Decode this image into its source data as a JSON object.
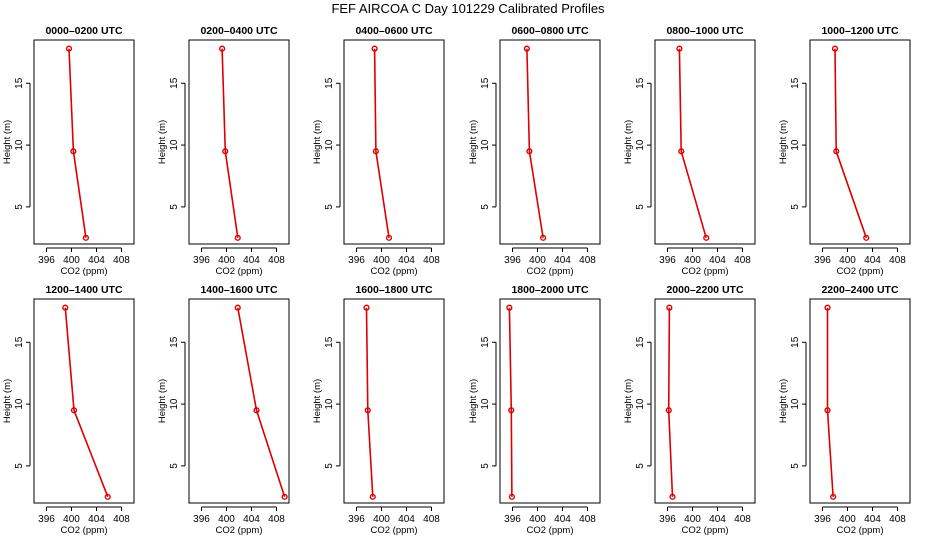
{
  "chart_data": {
    "type": "line",
    "title": "FEF AIRCOA C  Day 101229  Calibrated Profiles",
    "series_color": "#dd0000",
    "shared_axes": {
      "xlabel": "CO2 (ppm)",
      "ylabel": "Height (m)",
      "xlim": [
        394,
        410
      ],
      "ylim": [
        2,
        18.5
      ],
      "xticks": [
        396,
        400,
        404,
        408
      ],
      "yticks": [
        5,
        10,
        15
      ],
      "grid": false,
      "legend": "none"
    },
    "panels": [
      {
        "title": "0000–0200 UTC",
        "points": [
          {
            "x": 399.6,
            "y": 17.8
          },
          {
            "x": 400.3,
            "y": 9.5
          },
          {
            "x": 402.3,
            "y": 2.5
          }
        ]
      },
      {
        "title": "0200–0400 UTC",
        "points": [
          {
            "x": 399.3,
            "y": 17.8
          },
          {
            "x": 399.8,
            "y": 9.5
          },
          {
            "x": 401.8,
            "y": 2.5
          }
        ]
      },
      {
        "title": "0400–0600 UTC",
        "points": [
          {
            "x": 398.9,
            "y": 17.8
          },
          {
            "x": 399.1,
            "y": 9.5
          },
          {
            "x": 401.2,
            "y": 2.5
          }
        ]
      },
      {
        "title": "0600–0800 UTC",
        "points": [
          {
            "x": 398.3,
            "y": 17.8
          },
          {
            "x": 398.7,
            "y": 9.5
          },
          {
            "x": 400.9,
            "y": 2.5
          }
        ]
      },
      {
        "title": "0800–1000 UTC",
        "points": [
          {
            "x": 397.9,
            "y": 17.8
          },
          {
            "x": 398.2,
            "y": 9.5
          },
          {
            "x": 402.2,
            "y": 2.5
          }
        ]
      },
      {
        "title": "1000–1200 UTC",
        "points": [
          {
            "x": 398.0,
            "y": 17.8
          },
          {
            "x": 398.2,
            "y": 9.5
          },
          {
            "x": 403.0,
            "y": 2.5
          }
        ]
      },
      {
        "title": "1200–1400 UTC",
        "points": [
          {
            "x": 399.0,
            "y": 17.8
          },
          {
            "x": 400.4,
            "y": 9.5
          },
          {
            "x": 405.8,
            "y": 2.5
          }
        ]
      },
      {
        "title": "1400–1600 UTC",
        "points": [
          {
            "x": 401.8,
            "y": 17.8
          },
          {
            "x": 404.8,
            "y": 9.5
          },
          {
            "x": 409.3,
            "y": 2.5
          }
        ]
      },
      {
        "title": "1600–1800 UTC",
        "points": [
          {
            "x": 397.6,
            "y": 17.8
          },
          {
            "x": 397.8,
            "y": 9.5
          },
          {
            "x": 398.6,
            "y": 2.5
          }
        ]
      },
      {
        "title": "1800–2000 UTC",
        "points": [
          {
            "x": 395.5,
            "y": 17.8
          },
          {
            "x": 395.8,
            "y": 9.5
          },
          {
            "x": 395.9,
            "y": 2.5
          }
        ]
      },
      {
        "title": "2000–2200 UTC",
        "points": [
          {
            "x": 396.3,
            "y": 17.8
          },
          {
            "x": 396.2,
            "y": 9.5
          },
          {
            "x": 396.8,
            "y": 2.5
          }
        ]
      },
      {
        "title": "2200–2400 UTC",
        "points": [
          {
            "x": 396.8,
            "y": 17.8
          },
          {
            "x": 396.8,
            "y": 9.5
          },
          {
            "x": 397.7,
            "y": 2.5
          }
        ]
      }
    ]
  }
}
